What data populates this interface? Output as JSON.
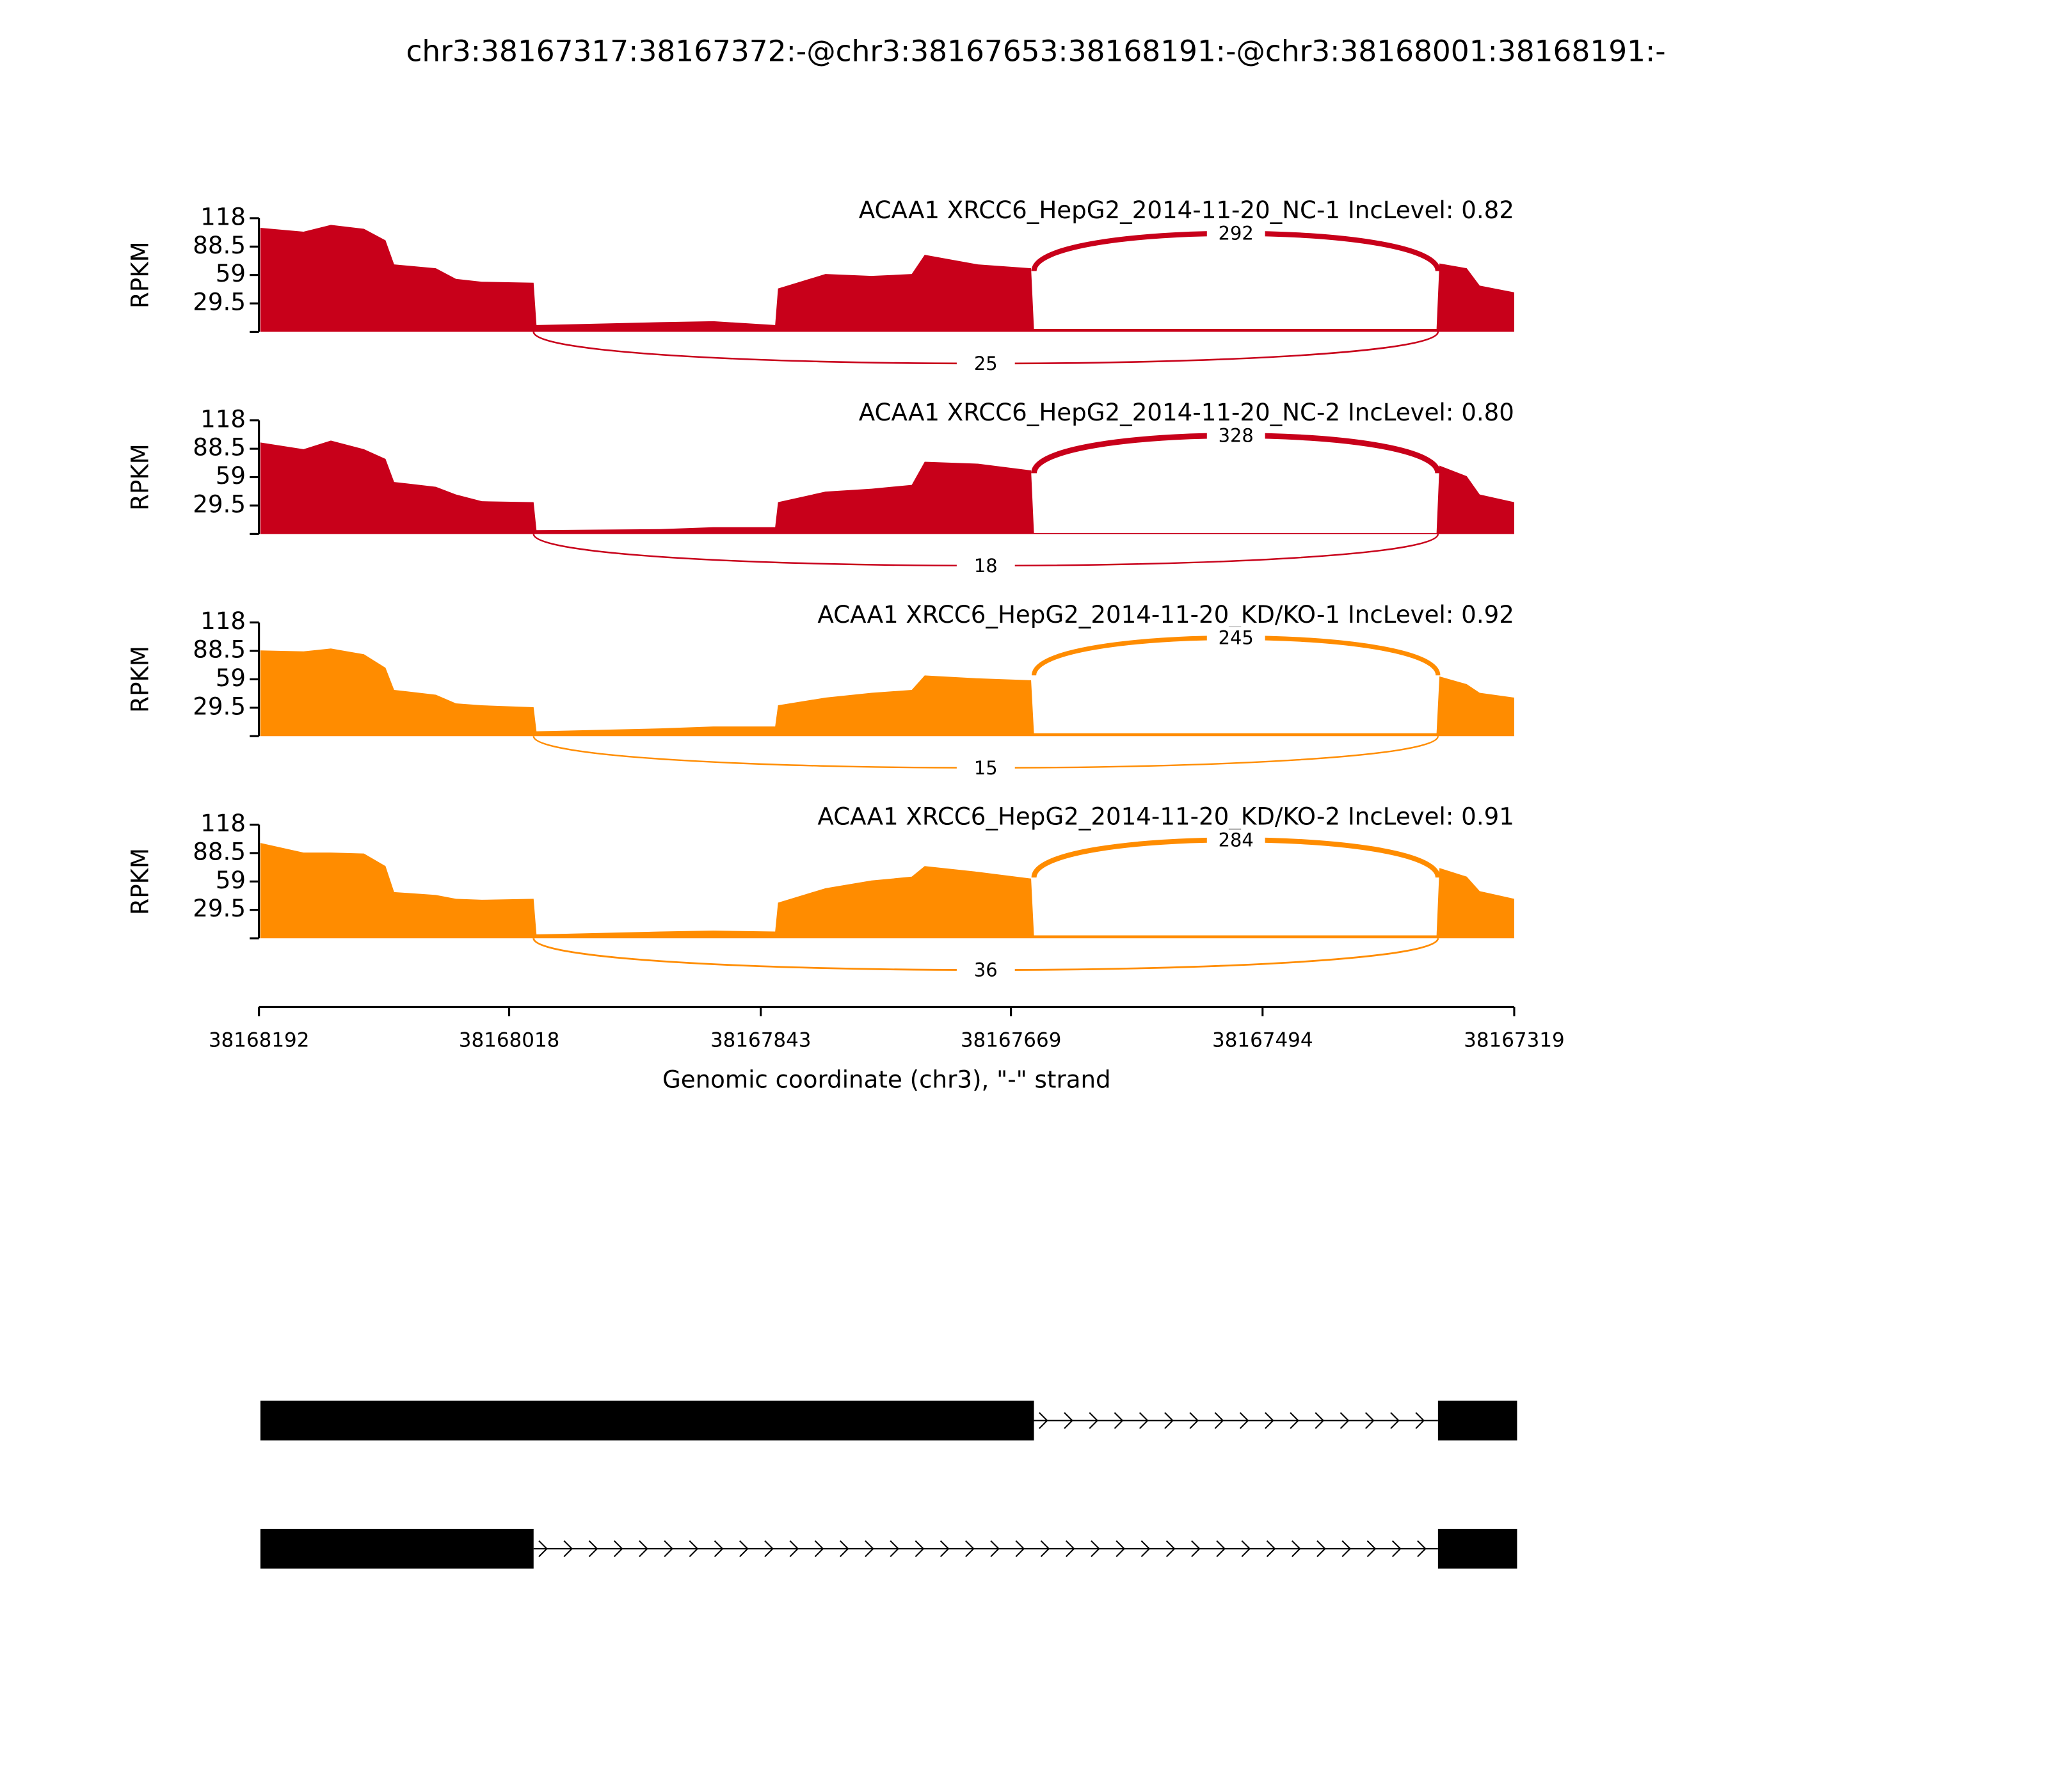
{
  "chart_data": {
    "type": "sashimi",
    "title": "chr3:38167317:38167372:-@chr3:38167653:38168191:-@chr3:38168001:38168191:-",
    "xlabel": "Genomic coordinate (chr3), \"-\" strand",
    "ylabel": "RPKM",
    "xlim": [
      38168192,
      38167319
    ],
    "xticks": [
      38168192,
      38168018,
      38167843,
      38167669,
      38167494,
      38167319
    ],
    "ylim": [
      0,
      118
    ],
    "yticks": [
      29.5,
      59,
      88.5,
      118
    ],
    "x": [
      38168191,
      38168161,
      38168142,
      38168119,
      38168104,
      38168098,
      38168069,
      38168055,
      38168037,
      38168001,
      38167999,
      38167913,
      38167876,
      38167833,
      38167831,
      38167798,
      38167766,
      38167738,
      38167729,
      38167692,
      38167655,
      38167653,
      38167373,
      38167371,
      38167352,
      38167343,
      38167319
    ],
    "introns": [
      [
        38167653,
        38167372
      ],
      [
        38168001,
        38167372
      ]
    ],
    "series": [
      {
        "name": "ACAA1 XRCC6_HepG2_2014-11-20_NC-1 IncLevel: 0.82",
        "color": "#c8001a",
        "values": [
          108,
          104,
          111,
          107,
          95,
          70,
          66,
          55,
          52,
          51,
          7,
          10,
          11,
          7,
          45,
          60,
          58,
          60,
          80,
          70,
          66,
          3,
          3,
          71,
          66,
          48,
          41
        ],
        "junction_counts": [
          292,
          25
        ]
      },
      {
        "name": "ACAA1 XRCC6_HepG2_2014-11-20_NC-2 IncLevel: 0.80",
        "color": "#c8001a",
        "values": [
          95,
          88,
          97,
          88,
          78,
          54,
          49,
          41,
          34,
          33,
          4,
          5,
          7,
          7,
          33,
          44,
          47,
          51,
          75,
          73,
          66,
          1,
          1,
          71,
          60,
          41,
          33
        ],
        "junction_counts": [
          328,
          18
        ]
      },
      {
        "name": "ACAA1 XRCC6_HepG2_2014-11-20_KD/KO-1 IncLevel: 0.92",
        "color": "#ff8c00",
        "values": [
          89,
          88,
          91,
          85,
          71,
          48,
          43,
          34,
          32,
          30,
          5,
          8,
          10,
          10,
          32,
          40,
          45,
          48,
          63,
          60,
          58,
          3,
          3,
          62,
          54,
          45,
          40
        ],
        "junction_counts": [
          245,
          15
        ]
      },
      {
        "name": "ACAA1 XRCC6_HepG2_2014-11-20_KD/KO-2 IncLevel: 0.91",
        "color": "#ff8c00",
        "values": [
          99,
          89,
          89,
          88,
          75,
          48,
          45,
          41,
          40,
          41,
          4,
          7,
          8,
          7,
          37,
          52,
          60,
          64,
          75,
          69,
          62,
          3,
          3,
          73,
          64,
          49,
          41
        ],
        "junction_counts": [
          284,
          36
        ]
      }
    ],
    "transcripts": [
      {
        "exons": [
          [
            38168191,
            38167653
          ],
          [
            38167372,
            38167317
          ]
        ]
      },
      {
        "exons": [
          [
            38168191,
            38168001
          ],
          [
            38167372,
            38167317
          ]
        ]
      }
    ]
  }
}
